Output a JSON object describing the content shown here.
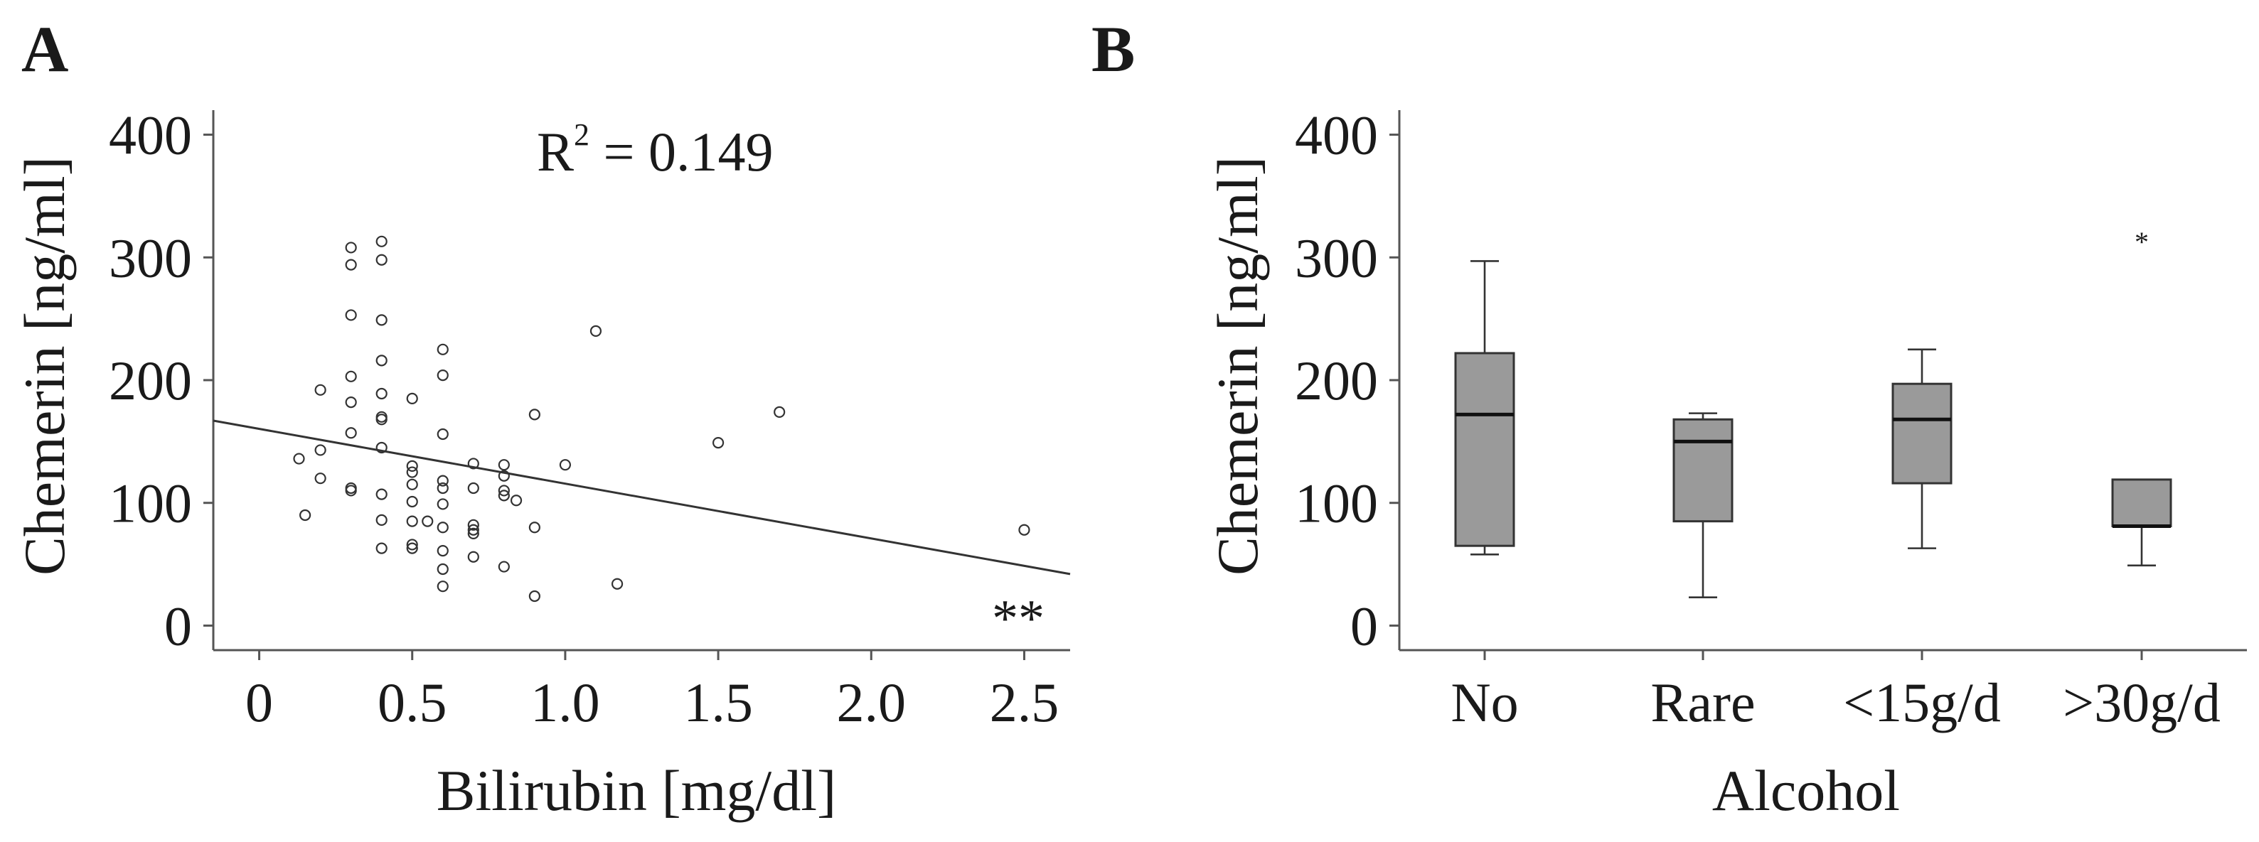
{
  "chart_data": [
    {
      "panel": "A",
      "type": "scatter",
      "xlabel": "Bilirubin [mg/dl]",
      "ylabel": "Chemerin [ng/ml]",
      "xlim": [
        -0.15,
        2.65
      ],
      "ylim": [
        -20,
        420
      ],
      "xticks": [
        "0",
        "0.5",
        "1.0",
        "1.5",
        "2.0",
        "2.5"
      ],
      "xtick_values": [
        0,
        0.5,
        1.0,
        1.5,
        2.0,
        2.5
      ],
      "yticks": [
        "0",
        "100",
        "200",
        "300",
        "400"
      ],
      "ytick_values": [
        0,
        100,
        200,
        300,
        400
      ],
      "r2_prefix": "R",
      "r2_sup": "2",
      "r2_suffix": " = 0.149",
      "significance": "**",
      "fit_line": {
        "x": [
          -0.15,
          2.65
        ],
        "y": [
          167,
          42
        ]
      },
      "points": [
        [
          0.13,
          136
        ],
        [
          0.15,
          90
        ],
        [
          0.2,
          192
        ],
        [
          0.2,
          143
        ],
        [
          0.2,
          120
        ],
        [
          0.3,
          308
        ],
        [
          0.3,
          294
        ],
        [
          0.3,
          253
        ],
        [
          0.3,
          203
        ],
        [
          0.3,
          182
        ],
        [
          0.3,
          157
        ],
        [
          0.3,
          112
        ],
        [
          0.3,
          110
        ],
        [
          0.4,
          313
        ],
        [
          0.4,
          298
        ],
        [
          0.4,
          249
        ],
        [
          0.4,
          216
        ],
        [
          0.4,
          189
        ],
        [
          0.4,
          170
        ],
        [
          0.4,
          168
        ],
        [
          0.4,
          145
        ],
        [
          0.4,
          107
        ],
        [
          0.4,
          86
        ],
        [
          0.4,
          63
        ],
        [
          0.5,
          185
        ],
        [
          0.5,
          130
        ],
        [
          0.5,
          125
        ],
        [
          0.5,
          115
        ],
        [
          0.5,
          101
        ],
        [
          0.5,
          85
        ],
        [
          0.5,
          66
        ],
        [
          0.5,
          63
        ],
        [
          0.55,
          85
        ],
        [
          0.6,
          225
        ],
        [
          0.6,
          204
        ],
        [
          0.6,
          156
        ],
        [
          0.6,
          118
        ],
        [
          0.6,
          112
        ],
        [
          0.6,
          99
        ],
        [
          0.6,
          80
        ],
        [
          0.6,
          61
        ],
        [
          0.6,
          46
        ],
        [
          0.6,
          32
        ],
        [
          0.7,
          132
        ],
        [
          0.7,
          112
        ],
        [
          0.7,
          82
        ],
        [
          0.7,
          78
        ],
        [
          0.7,
          75
        ],
        [
          0.7,
          56
        ],
        [
          0.8,
          131
        ],
        [
          0.8,
          122
        ],
        [
          0.8,
          110
        ],
        [
          0.8,
          106
        ],
        [
          0.8,
          48
        ],
        [
          0.84,
          102
        ],
        [
          0.9,
          172
        ],
        [
          0.9,
          80
        ],
        [
          0.9,
          24
        ],
        [
          1.0,
          131
        ],
        [
          1.1,
          240
        ],
        [
          1.17,
          34
        ],
        [
          1.5,
          149
        ],
        [
          1.7,
          174
        ],
        [
          2.5,
          78
        ]
      ]
    },
    {
      "panel": "B",
      "type": "box",
      "xlabel": "Alcohol",
      "ylabel": "Chemerin [ng/ml]",
      "ylim": [
        -20,
        420
      ],
      "yticks": [
        "0",
        "100",
        "200",
        "300",
        "400"
      ],
      "ytick_values": [
        0,
        100,
        200,
        300,
        400
      ],
      "categories": [
        "No",
        "Rare",
        "<15g/d",
        ">30g/d"
      ],
      "boxes": [
        {
          "whisker_low": 58,
          "q1": 65,
          "median": 172,
          "q3": 222,
          "whisker_high": 297,
          "outliers": []
        },
        {
          "whisker_low": 23,
          "q1": 85,
          "median": 150,
          "q3": 168,
          "whisker_high": 173,
          "outliers": []
        },
        {
          "whisker_low": 63,
          "q1": 116,
          "median": 168,
          "q3": 197,
          "whisker_high": 225,
          "outliers": []
        },
        {
          "whisker_low": 49,
          "q1": 81,
          "median": 81,
          "q3": 119,
          "whisker_high": 119,
          "outliers": [
            314
          ]
        }
      ],
      "outlier_marker": "*"
    }
  ]
}
